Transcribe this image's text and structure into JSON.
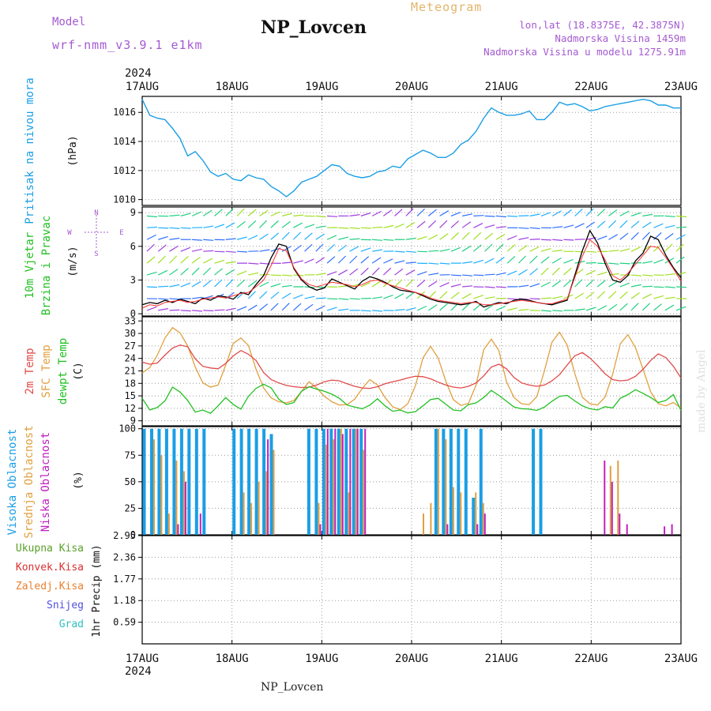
{
  "header": {
    "model_label": "Model",
    "model_name": "wrf-nmm_v3.9.1 e1km",
    "meteogram_label": "Meteogram",
    "station": "NP_Lovcen",
    "coords": "lon,lat (18.8375E, 42.3875N)",
    "elevation": "Nadmorska Visina 1459m",
    "model_elevation": "Nadmorska Visina u modelu 1275.91m"
  },
  "footer": {
    "station": "NP_Lovcen",
    "credit": "made by Angel"
  },
  "colors": {
    "pressure": "#1a9ee6",
    "wind_speed": "#000000",
    "wind_dir": "#ff3030",
    "t2m": "#e04a4a",
    "tsfc": "#e0a040",
    "dewpt": "#22c022",
    "cloud_high": "#1a9ee6",
    "cloud_mid": "#e0a040",
    "cloud_low": "#c020c0",
    "precip_total": "#5aa02a",
    "precip_conv": "#d83030"
  },
  "chart_data": [
    {
      "type": "line",
      "panel": "pressure",
      "title": "Pritisak na nivou mora",
      "ylabel": "(hPa)",
      "ylim": [
        1009.6,
        1017.1
      ],
      "yticks": [
        1010,
        1012,
        1014,
        1016
      ],
      "x_start": "2024-08-17T00",
      "x_end": "2024-08-23T00",
      "x_ticks": [
        "17AUG",
        "18AUG",
        "19AUG",
        "20AUG",
        "21AUG",
        "22AUG",
        "23AUG"
      ],
      "x_year": "2024",
      "x_step_hours": 3,
      "series": [
        {
          "values": [
            1016.9,
            1015.8,
            1015.6,
            1015.5,
            1014.9,
            1014.2,
            1013.0,
            1013.3,
            1012.7,
            1011.9,
            1011.6,
            1011.8,
            1011.4,
            1011.3,
            1011.7,
            1011.5,
            1011.4,
            1010.9,
            1010.6,
            1010.2,
            1010.6,
            1011.2,
            1011.4,
            1011.6,
            1012.0,
            1012.4,
            1012.3,
            1011.8,
            1011.6,
            1011.5,
            1011.6,
            1011.9,
            1012.0,
            1012.3,
            1012.2,
            1012.8,
            1013.1,
            1013.4,
            1013.2,
            1012.9,
            1012.9,
            1013.2,
            1013.8,
            1014.1,
            1014.7,
            1015.6,
            1016.3,
            1016.0,
            1015.8,
            1015.8,
            1015.9,
            1016.1,
            1015.5,
            1015.5,
            1016.0,
            1016.7,
            1016.5,
            1016.6,
            1016.4,
            1016.1,
            1016.2,
            1016.4,
            1016.5,
            1016.6,
            1016.7,
            1016.8,
            1016.9,
            1016.8,
            1016.5,
            1016.5,
            1016.3,
            1016.3,
            1016.3,
            1016.3,
            1016.3,
            1016.3,
            1016.3,
            1016.3,
            1016.3,
            1016.3,
            1016.3,
            1016.3,
            1016.3,
            1016.3,
            1016.3,
            1016.3,
            1016.3,
            1016.3,
            1016.3,
            1016.3,
            1016.3,
            1016.3,
            1016.3,
            1016.3,
            1016.3,
            1016.3,
            1016.3,
            1016.3,
            1016.3,
            1016.3,
            1016.3,
            1016.3,
            1016.3,
            1016.3,
            1016.3,
            1016.3,
            1016.3,
            1016.3,
            1016.3,
            1016.3,
            1016.3,
            1016.3,
            1016.3,
            1016.3,
            1016.3,
            1016.3,
            1016.3,
            1016.3,
            1016.3,
            1016.3,
            1016.3,
            1016.3,
            1016.3,
            1016.3,
            1016.3,
            1016.3,
            1016.3,
            1016.3,
            1016.3,
            1016.3,
            1016.3,
            1016.3,
            1016.3,
            1016.3,
            1016.3,
            1016.3,
            1016.3,
            1016.3,
            1016.3,
            1016.3,
            1016.3,
            1016.3,
            1016.3,
            1016.3,
            1016.3,
            1016.3,
            1016.3,
            1016.3,
            1016.3,
            1016.3,
            1016.3,
            1016.3,
            1016.3,
            1016.3,
            1016.3,
            1016.3,
            1016.3,
            1016.3,
            1016.3,
            1016.3,
            1016.3,
            1016.3,
            1016.3,
            1016.3,
            1016.3,
            1016.3,
            1016.3,
            1016.3,
            1016.3,
            1016.3,
            1016.3,
            1016.3,
            1016.3,
            1016.3,
            1016.3,
            1016.3,
            1016.3,
            1016.3,
            1016.3,
            1016.3,
            1016.3,
            1016.3,
            1016.3,
            1016.3,
            1016.3,
            1016.3,
            1016.3,
            1016.3,
            1016.3,
            1016.3,
            1016.3,
            1016.3,
            1016.3,
            1016.3,
            1016.3,
            1016.3,
            1016.3,
            1016.3,
            1016.3
          ]
        }
      ],
      "grid": true
    },
    {
      "type": "line",
      "panel": "wind",
      "title_lines": [
        "10m Vjetar",
        "Brzina i Pravac"
      ],
      "ylabel": "(m/s)",
      "compass": [
        "N",
        "S",
        "E",
        "W"
      ],
      "ylim": [
        -0.2,
        9.5
      ],
      "yticks": [
        0,
        3,
        6,
        9
      ],
      "series": [
        {
          "name": "Brzina",
          "values": [
            0.8,
            1.0,
            0.9,
            1.2,
            1.0,
            1.3,
            1.1,
            0.9,
            1.4,
            1.2,
            1.6,
            1.5,
            1.3,
            1.9,
            1.7,
            2.6,
            3.4,
            5.0,
            6.2,
            6.0,
            4.0,
            3.0,
            2.4,
            2.1,
            2.3,
            3.1,
            2.8,
            2.5,
            2.2,
            2.9,
            3.3,
            3.1,
            2.8,
            2.4,
            2.1,
            2.0,
            1.9,
            1.6,
            1.3,
            1.1,
            1.0,
            0.9,
            0.8,
            0.9,
            1.1,
            0.6,
            0.8,
            1.0,
            0.9,
            1.2,
            1.3,
            1.2,
            1.0,
            0.9,
            0.8,
            1.0,
            1.2,
            3.4,
            5.6,
            7.4,
            6.3,
            4.5,
            3.0,
            2.8,
            3.4,
            4.7,
            5.4,
            6.9,
            6.6,
            5.2,
            4.1,
            3.2
          ]
        },
        {
          "name": "Pravac",
          "values": [
            0.5,
            0.8,
            0.7,
            1.0,
            1.1,
            1.2,
            1.0,
            1.1,
            1.3,
            1.4,
            1.5,
            1.4,
            1.6,
            1.8,
            1.9,
            2.4,
            3.0,
            4.3,
            5.8,
            5.6,
            4.1,
            3.1,
            2.6,
            2.4,
            2.6,
            2.8,
            2.7,
            2.6,
            2.4,
            2.6,
            2.9,
            3.0,
            2.7,
            2.5,
            2.3,
            2.1,
            1.9,
            1.7,
            1.4,
            1.2,
            1.1,
            1.0,
            0.9,
            1.0,
            1.0,
            0.8,
            0.8,
            0.9,
            1.0,
            1.1,
            1.2,
            1.1,
            1.0,
            0.9,
            0.9,
            1.1,
            1.3,
            3.2,
            5.1,
            6.6,
            6.0,
            4.8,
            3.4,
            3.0,
            3.6,
            4.4,
            5.2,
            6.0,
            5.9,
            5.0,
            4.0,
            2.9
          ]
        }
      ],
      "grid": true
    },
    {
      "type": "line",
      "panel": "temperature",
      "title_lines": [
        "2m Temp",
        "SFC Temp",
        "dewpt Temp"
      ],
      "ylabel": "(C)",
      "ylim": [
        7.8,
        34
      ],
      "yticks": [
        9,
        12,
        15,
        18,
        21,
        24,
        27,
        30,
        33
      ],
      "series": [
        {
          "name": "2m Temp",
          "values": [
            23.1,
            22.6,
            22.9,
            24.8,
            26.5,
            27.2,
            26.8,
            23.9,
            22.1,
            21.7,
            21.5,
            22.8,
            24.6,
            25.9,
            25.0,
            23.5,
            20.6,
            18.9,
            18.1,
            17.5,
            17.2,
            17.0,
            17.1,
            17.6,
            18.4,
            18.8,
            18.6,
            17.9,
            17.3,
            16.9,
            16.8,
            17.2,
            17.9,
            18.4,
            18.8,
            19.3,
            19.7,
            19.6,
            19.1,
            18.3,
            17.6,
            17.1,
            16.9,
            17.3,
            18.1,
            19.8,
            21.9,
            22.6,
            21.5,
            19.4,
            18.1,
            17.6,
            17.3,
            17.6,
            18.6,
            20.1,
            22.4,
            24.6,
            25.4,
            24.1,
            22.3,
            20.3,
            18.9,
            18.6,
            18.8,
            19.7,
            21.4,
            23.5,
            25.1,
            24.2,
            22.1,
            19.3
          ]
        },
        {
          "name": "SFC Temp",
          "values": [
            20.5,
            21.8,
            24.8,
            28.9,
            31.4,
            30.1,
            27.0,
            21.9,
            18.1,
            17.1,
            17.6,
            22.4,
            27.6,
            28.9,
            27.1,
            21.4,
            16.9,
            14.5,
            13.6,
            13.3,
            13.9,
            16.1,
            18.4,
            16.9,
            14.9,
            13.6,
            12.8,
            12.9,
            14.2,
            16.8,
            18.9,
            17.6,
            14.6,
            12.4,
            11.7,
            13.1,
            17.4,
            24.1,
            26.9,
            24.1,
            18.6,
            14.1,
            12.7,
            13.2,
            17.6,
            26.1,
            28.6,
            25.9,
            18.4,
            14.6,
            13.1,
            12.9,
            14.8,
            21.0,
            27.9,
            30.3,
            27.2,
            20.4,
            14.7,
            13.1,
            12.8,
            14.7,
            20.2,
            27.5,
            29.7,
            26.6,
            21.4,
            16.0,
            13.1,
            12.6,
            13.4,
            12.1
          ]
        },
        {
          "name": "dewpt Temp",
          "values": [
            14.4,
            11.6,
            12.2,
            13.8,
            17.1,
            15.9,
            13.9,
            11.1,
            11.6,
            10.8,
            12.6,
            14.6,
            12.9,
            11.8,
            14.9,
            16.8,
            17.8,
            16.9,
            14.2,
            12.9,
            13.4,
            16.1,
            17.2,
            16.6,
            16.1,
            15.4,
            14.4,
            12.8,
            12.3,
            11.9,
            12.8,
            14.3,
            12.6,
            11.3,
            11.6,
            10.9,
            11.2,
            12.6,
            14.1,
            14.4,
            13.0,
            11.6,
            11.4,
            12.9,
            13.3,
            14.6,
            16.3,
            15.1,
            13.7,
            12.3,
            11.9,
            11.8,
            11.5,
            12.3,
            13.7,
            14.9,
            15.1,
            13.8,
            12.6,
            11.9,
            11.6,
            12.4,
            12.1,
            14.4,
            15.3,
            16.5,
            15.6,
            14.6,
            13.4,
            13.9,
            15.3,
            11.5
          ]
        }
      ],
      "grid": true
    },
    {
      "type": "bar",
      "panel": "clouds",
      "title_lines": [
        "Visoka Oblacnost",
        "Srednja Oblacnost",
        "Niska Oblacnost"
      ],
      "ylabel": "(%)",
      "ylim": [
        0,
        102
      ],
      "yticks": [
        0,
        25,
        50,
        75,
        100
      ],
      "series": [
        {
          "name": "Visoka Oblacnost",
          "values": [
            100,
            100,
            100,
            100,
            100,
            100,
            100,
            100,
            100,
            0,
            0,
            0,
            100,
            100,
            100,
            100,
            100,
            95,
            0,
            0,
            0,
            0,
            100,
            100,
            100,
            100,
            100,
            100,
            100,
            100,
            0,
            0,
            0,
            0,
            0,
            0,
            0,
            0,
            0,
            100,
            100,
            100,
            100,
            100,
            35,
            100,
            0,
            0,
            0,
            0,
            0,
            0,
            100,
            100,
            0,
            0,
            0,
            0,
            0,
            0,
            0,
            0,
            0,
            0,
            0,
            0,
            0,
            0,
            0,
            0,
            0,
            0
          ]
        },
        {
          "name": "Srednja Oblacnost",
          "values": [
            0,
            90,
            75,
            20,
            70,
            60,
            0,
            0,
            0,
            0,
            0,
            0,
            0,
            40,
            30,
            50,
            60,
            80,
            0,
            0,
            0,
            0,
            0,
            30,
            85,
            90,
            100,
            40,
            100,
            80,
            0,
            0,
            0,
            0,
            0,
            0,
            0,
            20,
            30,
            100,
            90,
            45,
            40,
            0,
            40,
            30,
            0,
            0,
            0,
            0,
            0,
            0,
            0,
            0,
            0,
            0,
            0,
            0,
            0,
            0,
            0,
            0,
            65,
            70,
            0,
            0,
            0,
            0,
            0,
            0,
            0,
            0
          ]
        },
        {
          "name": "Niska Oblacnost",
          "values": [
            0,
            0,
            0,
            0,
            10,
            50,
            0,
            20,
            0,
            0,
            0,
            0,
            0,
            0,
            0,
            0,
            90,
            0,
            0,
            0,
            0,
            0,
            0,
            10,
            100,
            100,
            95,
            100,
            100,
            100,
            0,
            0,
            0,
            0,
            0,
            0,
            0,
            0,
            0,
            0,
            10,
            0,
            0,
            0,
            10,
            20,
            0,
            0,
            0,
            0,
            0,
            0,
            0,
            0,
            0,
            0,
            0,
            0,
            0,
            0,
            0,
            70,
            50,
            20,
            10,
            0,
            0,
            0,
            0,
            8,
            10,
            0
          ]
        }
      ],
      "grid": true
    },
    {
      "type": "bar",
      "panel": "precipitation",
      "title_lines": [
        "Ukupna Kisa",
        "Konvek.Kisa",
        "Zaledj.Kisa",
        "Snijeg",
        "Grad"
      ],
      "ylabel": "1hr Precip (mm)",
      "ylim": [
        0,
        2.95
      ],
      "yticks": [
        0.59,
        1.18,
        1.77,
        2.36,
        2.95
      ],
      "series": [
        {
          "name": "Ukupna Kisa",
          "values": [
            0,
            0,
            0,
            0,
            0,
            0,
            0,
            0,
            0,
            0,
            0,
            0,
            0,
            0,
            0,
            0,
            0,
            0,
            0,
            0,
            0,
            0,
            0,
            0,
            0,
            0,
            0,
            0,
            0,
            0,
            0,
            0,
            0,
            0,
            0,
            0,
            0,
            0,
            0,
            0,
            0,
            0,
            0,
            0,
            0,
            0,
            0,
            0,
            0,
            0,
            0,
            0,
            0,
            0,
            0,
            0,
            0,
            0,
            0,
            0,
            0,
            0,
            0,
            0,
            0,
            0,
            0,
            0,
            0,
            0,
            0,
            0
          ]
        },
        {
          "name": "Konvek.Kisa",
          "values": [
            0,
            0,
            0,
            0,
            0,
            0,
            0,
            0,
            0,
            0,
            0,
            0,
            0,
            0,
            0,
            0,
            0,
            0,
            0,
            0,
            0,
            0,
            0,
            0,
            0,
            0,
            0,
            0,
            0,
            0,
            0,
            0,
            0,
            0,
            0,
            0,
            0,
            0,
            0,
            0,
            0,
            0,
            0,
            0,
            0,
            0,
            0,
            0,
            0,
            0,
            0,
            0,
            0,
            0,
            0,
            0,
            0,
            0,
            0,
            0,
            0,
            0,
            0,
            0,
            0,
            0,
            0,
            0,
            0,
            0,
            0,
            0
          ]
        }
      ],
      "grid": true
    }
  ]
}
